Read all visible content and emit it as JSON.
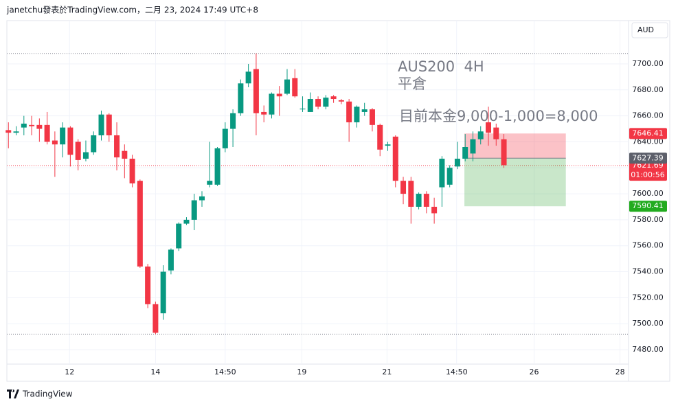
{
  "chart_data": {
    "type": "candlestick",
    "header": "janetchu發表於TradingView.com，二月 23, 2024 17:49 UTC+8",
    "currency": "AUD",
    "brand": "TradingView",
    "annotations": [
      "AUS200  4H",
      "平倉",
      "目前本金9,000-1,000=8,000"
    ],
    "up_color": "#089981",
    "down_color": "#f23645",
    "xlim": [
      -0.2,
      80.1
    ],
    "ylim": [
      7468.9,
      7733.3
    ],
    "xticks": [
      {
        "value": 7.9,
        "label": "12"
      },
      {
        "value": 19,
        "label": "14"
      },
      {
        "value": 28,
        "label": "14:50"
      },
      {
        "value": 37.9,
        "label": "19"
      },
      {
        "value": 48.9,
        "label": "21"
      },
      {
        "value": 57.9,
        "label": "14:50"
      },
      {
        "value": 67.9,
        "label": "26"
      },
      {
        "value": 79,
        "label": "28"
      }
    ],
    "yticks": [
      {
        "value": 7480,
        "label": "7480.00"
      },
      {
        "value": 7500,
        "label": "7500.00"
      },
      {
        "value": 7520,
        "label": "7520.00"
      },
      {
        "value": 7540,
        "label": "7540.00"
      },
      {
        "value": 7560,
        "label": "7560.00"
      },
      {
        "value": 7580,
        "label": "7580.00"
      },
      {
        "value": 7600,
        "label": "7600.00"
      },
      {
        "value": 7620,
        "label": "7620.00"
      },
      {
        "value": 7640,
        "label": "7640.00"
      },
      {
        "value": 7660,
        "label": "7660.00"
      },
      {
        "value": 7680,
        "label": "7680.00"
      },
      {
        "value": 7700,
        "label": "7700.00"
      }
    ],
    "grid": true,
    "x": [
      0,
      1,
      2,
      3,
      4,
      5,
      6,
      7,
      8,
      9,
      10,
      11,
      12,
      13,
      14,
      15,
      16,
      17,
      18,
      19,
      20,
      21,
      22,
      23,
      24,
      25,
      26,
      27,
      28,
      29,
      30,
      31,
      32,
      33,
      34,
      35,
      36,
      37,
      38,
      39,
      40,
      41,
      42,
      43,
      44,
      45,
      46,
      47,
      48,
      49,
      50,
      51,
      52,
      53,
      54,
      55,
      56,
      57,
      58,
      59,
      60,
      61,
      62,
      63,
      64
    ],
    "open": [
      7649,
      7647,
      7651,
      7653,
      7653,
      7653,
      7641,
      7638,
      7651,
      7640,
      7627,
      7632,
      7645,
      7661,
      7645,
      7633,
      7627,
      7610,
      7544,
      7515,
      7508,
      7541,
      7558,
      7577,
      7580,
      7595,
      7607,
      7607,
      7635,
      7650,
      7662,
      7685,
      7696,
      7663,
      7661,
      7677,
      7677,
      7689,
      7665,
      7663,
      7673,
      7667,
      7675,
      7672,
      7671,
      7655,
      7663,
      7665,
      7653,
      7637,
      7644,
      7610,
      7610,
      7590,
      7600,
      7590,
      7605,
      7607,
      7621,
      7627,
      7631,
      7642,
      7655,
      7651,
      7642
    ],
    "high": [
      7655,
      7652,
      7660,
      7660,
      7658,
      7663,
      7648,
      7655,
      7652,
      7642,
      7641,
      7648,
      7664,
      7662,
      7655,
      7638,
      7630,
      7611,
      7546,
      7517,
      7545,
      7558,
      7578,
      7582,
      7600,
      7602,
      7640,
      7636,
      7655,
      7665,
      7688,
      7700,
      7708,
      7668,
      7678,
      7683,
      7696,
      7696,
      7675,
      7678,
      7675,
      7676,
      7676,
      7673,
      7673,
      7668,
      7670,
      7666,
      7654,
      7640,
      7645,
      7613,
      7613,
      7601,
      7602,
      7597,
      7629,
      7622,
      7640,
      7646,
      7648,
      7652,
      7667,
      7654,
      7646
    ],
    "low": [
      7635,
      7645,
      7645,
      7645,
      7640,
      7638,
      7613,
      7628,
      7621,
      7618,
      7625,
      7630,
      7641,
      7640,
      7618,
      7612,
      7605,
      7543,
      7512,
      7492,
      7503,
      7538,
      7556,
      7576,
      7572,
      7590,
      7605,
      7606,
      7632,
      7636,
      7660,
      7682,
      7645,
      7655,
      7658,
      7660,
      7676,
      7674,
      7663,
      7663,
      7665,
      7665,
      7670,
      7669,
      7640,
      7651,
      7660,
      7648,
      7629,
      7633,
      7605,
      7592,
      7577,
      7588,
      7585,
      7577,
      7590,
      7605,
      7619,
      7625,
      7625,
      7638,
      7637,
      7637,
      7620
    ],
    "close": [
      7647,
      7648,
      7654,
      7652,
      7650,
      7640,
      7638,
      7651,
      7630,
      7626,
      7632,
      7645,
      7661,
      7645,
      7628,
      7627,
      7608,
      7544,
      7515,
      7493,
      7540,
      7557,
      7577,
      7580,
      7595,
      7598,
      7610,
      7635,
      7650,
      7662,
      7685,
      7694,
      7662,
      7661,
      7677,
      7675,
      7688,
      7675,
      7665.5,
      7673,
      7667,
      7674,
      7673,
      7671,
      7655,
      7667,
      7665,
      7653,
      7634,
      7638,
      7610,
      7600,
      7590,
      7600,
      7590,
      7585,
      7627,
      7620,
      7627,
      7636,
      7642,
      7648,
      7647,
      7642,
      7622
    ],
    "high_line": 7708,
    "low_line": 7492,
    "last_price": 7621.69,
    "countdown": "01:00:56",
    "position": {
      "entry": 7627.39,
      "stop": 7646.41,
      "target": 7590.41,
      "x_start": 58.9,
      "x_end": 72.0
    }
  }
}
